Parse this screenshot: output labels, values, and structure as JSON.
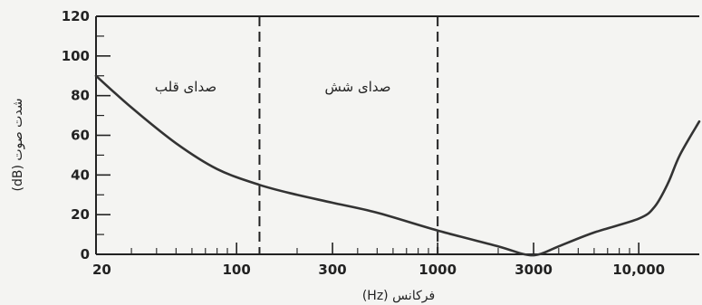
{
  "chart_data": {
    "type": "line",
    "title": "",
    "xlabel": "(Hz) فرکانس",
    "ylabel": "(dB) شدت صوت",
    "xscale": "log",
    "xlim": [
      20,
      20000
    ],
    "ylim": [
      0,
      120
    ],
    "x_ticks": [
      {
        "value": 20,
        "label": "20"
      },
      {
        "value": 100,
        "label": "100"
      },
      {
        "value": 300,
        "label": "300"
      },
      {
        "value": 1000,
        "label": "1000"
      },
      {
        "value": 3000,
        "label": "3000"
      },
      {
        "value": 10000,
        "label": "10,000"
      }
    ],
    "y_ticks": [
      0,
      20,
      40,
      60,
      80,
      100,
      120
    ],
    "y_minor_ticks": [
      10,
      30,
      50,
      70,
      90,
      110
    ],
    "x_minor_ticks": [
      30,
      40,
      50,
      60,
      70,
      80,
      90,
      200,
      400,
      500,
      600,
      700,
      800,
      900,
      2000,
      4000,
      5000,
      6000,
      7000,
      8000,
      9000
    ],
    "dividers": [
      130,
      1000
    ],
    "regions": [
      {
        "label": "صدای قلب",
        "from": 20,
        "to": 130
      },
      {
        "label": "صدای شش",
        "from": 130,
        "to": 1000
      }
    ],
    "series": [
      {
        "points": [
          [
            20,
            90
          ],
          [
            30,
            74
          ],
          [
            50,
            56
          ],
          [
            80,
            43
          ],
          [
            130,
            35
          ],
          [
            200,
            30
          ],
          [
            300,
            26
          ],
          [
            500,
            21
          ],
          [
            1000,
            12
          ],
          [
            2000,
            4
          ],
          [
            2700,
            0
          ],
          [
            3200,
            0
          ],
          [
            4000,
            4
          ],
          [
            6000,
            11
          ],
          [
            10000,
            18
          ],
          [
            12000,
            24
          ],
          [
            14000,
            36
          ],
          [
            16000,
            50
          ],
          [
            20000,
            67
          ]
        ]
      }
    ]
  }
}
